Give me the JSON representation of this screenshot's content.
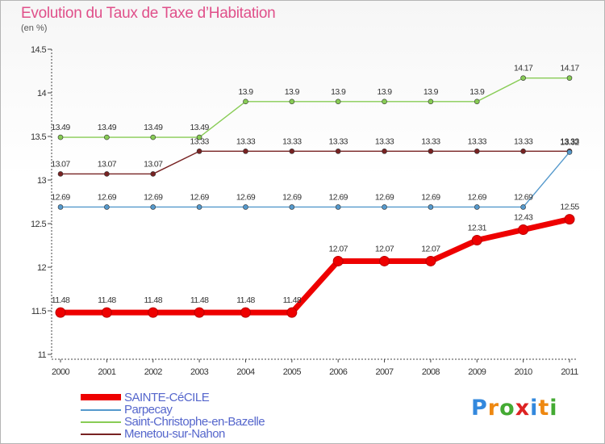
{
  "chart_data": {
    "type": "line",
    "title": "Evolution du Taux de Taxe d’Habitation",
    "ylabel": "(en %)",
    "xlabel": "",
    "ylim": [
      11,
      14.5
    ],
    "yticks": [
      "11",
      "11.5",
      "12",
      "12.5",
      "13",
      "13.5",
      "14",
      "14.5"
    ],
    "categories": [
      "2000",
      "2001",
      "2002",
      "2003",
      "2004",
      "2005",
      "2006",
      "2007",
      "2008",
      "2009",
      "2010",
      "2011"
    ],
    "series": [
      {
        "name": "Saint-Christophe-en-Bazelle",
        "color": "#88cc55",
        "values": [
          13.49,
          13.49,
          13.49,
          13.49,
          13.9,
          13.9,
          13.9,
          13.9,
          13.9,
          13.9,
          14.17,
          14.17
        ],
        "labels": [
          "13.49",
          "13.49",
          "13.49",
          "13.49",
          "13.9",
          "13.9",
          "13.9",
          "13.9",
          "13.9",
          "13.9",
          "14.17",
          "14.17"
        ]
      },
      {
        "name": "Menetou-sur-Nahon",
        "color": "#772222",
        "values": [
          13.07,
          13.07,
          13.07,
          13.33,
          13.33,
          13.33,
          13.33,
          13.33,
          13.33,
          13.33,
          13.33,
          13.33
        ],
        "labels": [
          "13.07",
          "13.07",
          "13.07",
          "13.33",
          "13.33",
          "13.33",
          "13.33",
          "13.33",
          "13.33",
          "13.33",
          "13.33",
          "13.33"
        ]
      },
      {
        "name": "Parpecay",
        "color": "#5599cc",
        "values": [
          12.69,
          12.69,
          12.69,
          12.69,
          12.69,
          12.69,
          12.69,
          12.69,
          12.69,
          12.69,
          12.69,
          13.32
        ],
        "labels": [
          "12.69",
          "12.69",
          "12.69",
          "12.69",
          "12.69",
          "12.69",
          "12.69",
          "12.69",
          "12.69",
          "12.69",
          "12.69",
          "13.32"
        ]
      },
      {
        "name": "SAINTE-CéCILE",
        "color": "#ee0000",
        "values": [
          11.48,
          11.48,
          11.48,
          11.48,
          11.48,
          11.48,
          12.07,
          12.07,
          12.07,
          12.31,
          12.43,
          12.55
        ],
        "labels": [
          "11.48",
          "11.48",
          "11.48",
          "11.48",
          "11.48",
          "11.48",
          "12.07",
          "12.07",
          "12.07",
          "12.31",
          "12.43",
          "12.55"
        ]
      }
    ],
    "legend": [
      {
        "name": "SAINTE-CéCILE",
        "color": "#ee0000"
      },
      {
        "name": "Parpecay",
        "color": "#5599cc"
      },
      {
        "name": "Saint-Christophe-en-Bazelle",
        "color": "#88cc55"
      },
      {
        "name": "Menetou-sur-Nahon",
        "color": "#772222"
      }
    ],
    "grid": false,
    "legend_position": "bottom-left"
  },
  "branding": {
    "logo_letters": [
      "P",
      "r",
      "o",
      "x",
      "i",
      "t",
      "i"
    ],
    "logo_colors": [
      "#3388dd",
      "#ee8811",
      "#44aa33",
      "#dd2222",
      "#3388dd",
      "#ee8811",
      "#44aa33"
    ]
  }
}
